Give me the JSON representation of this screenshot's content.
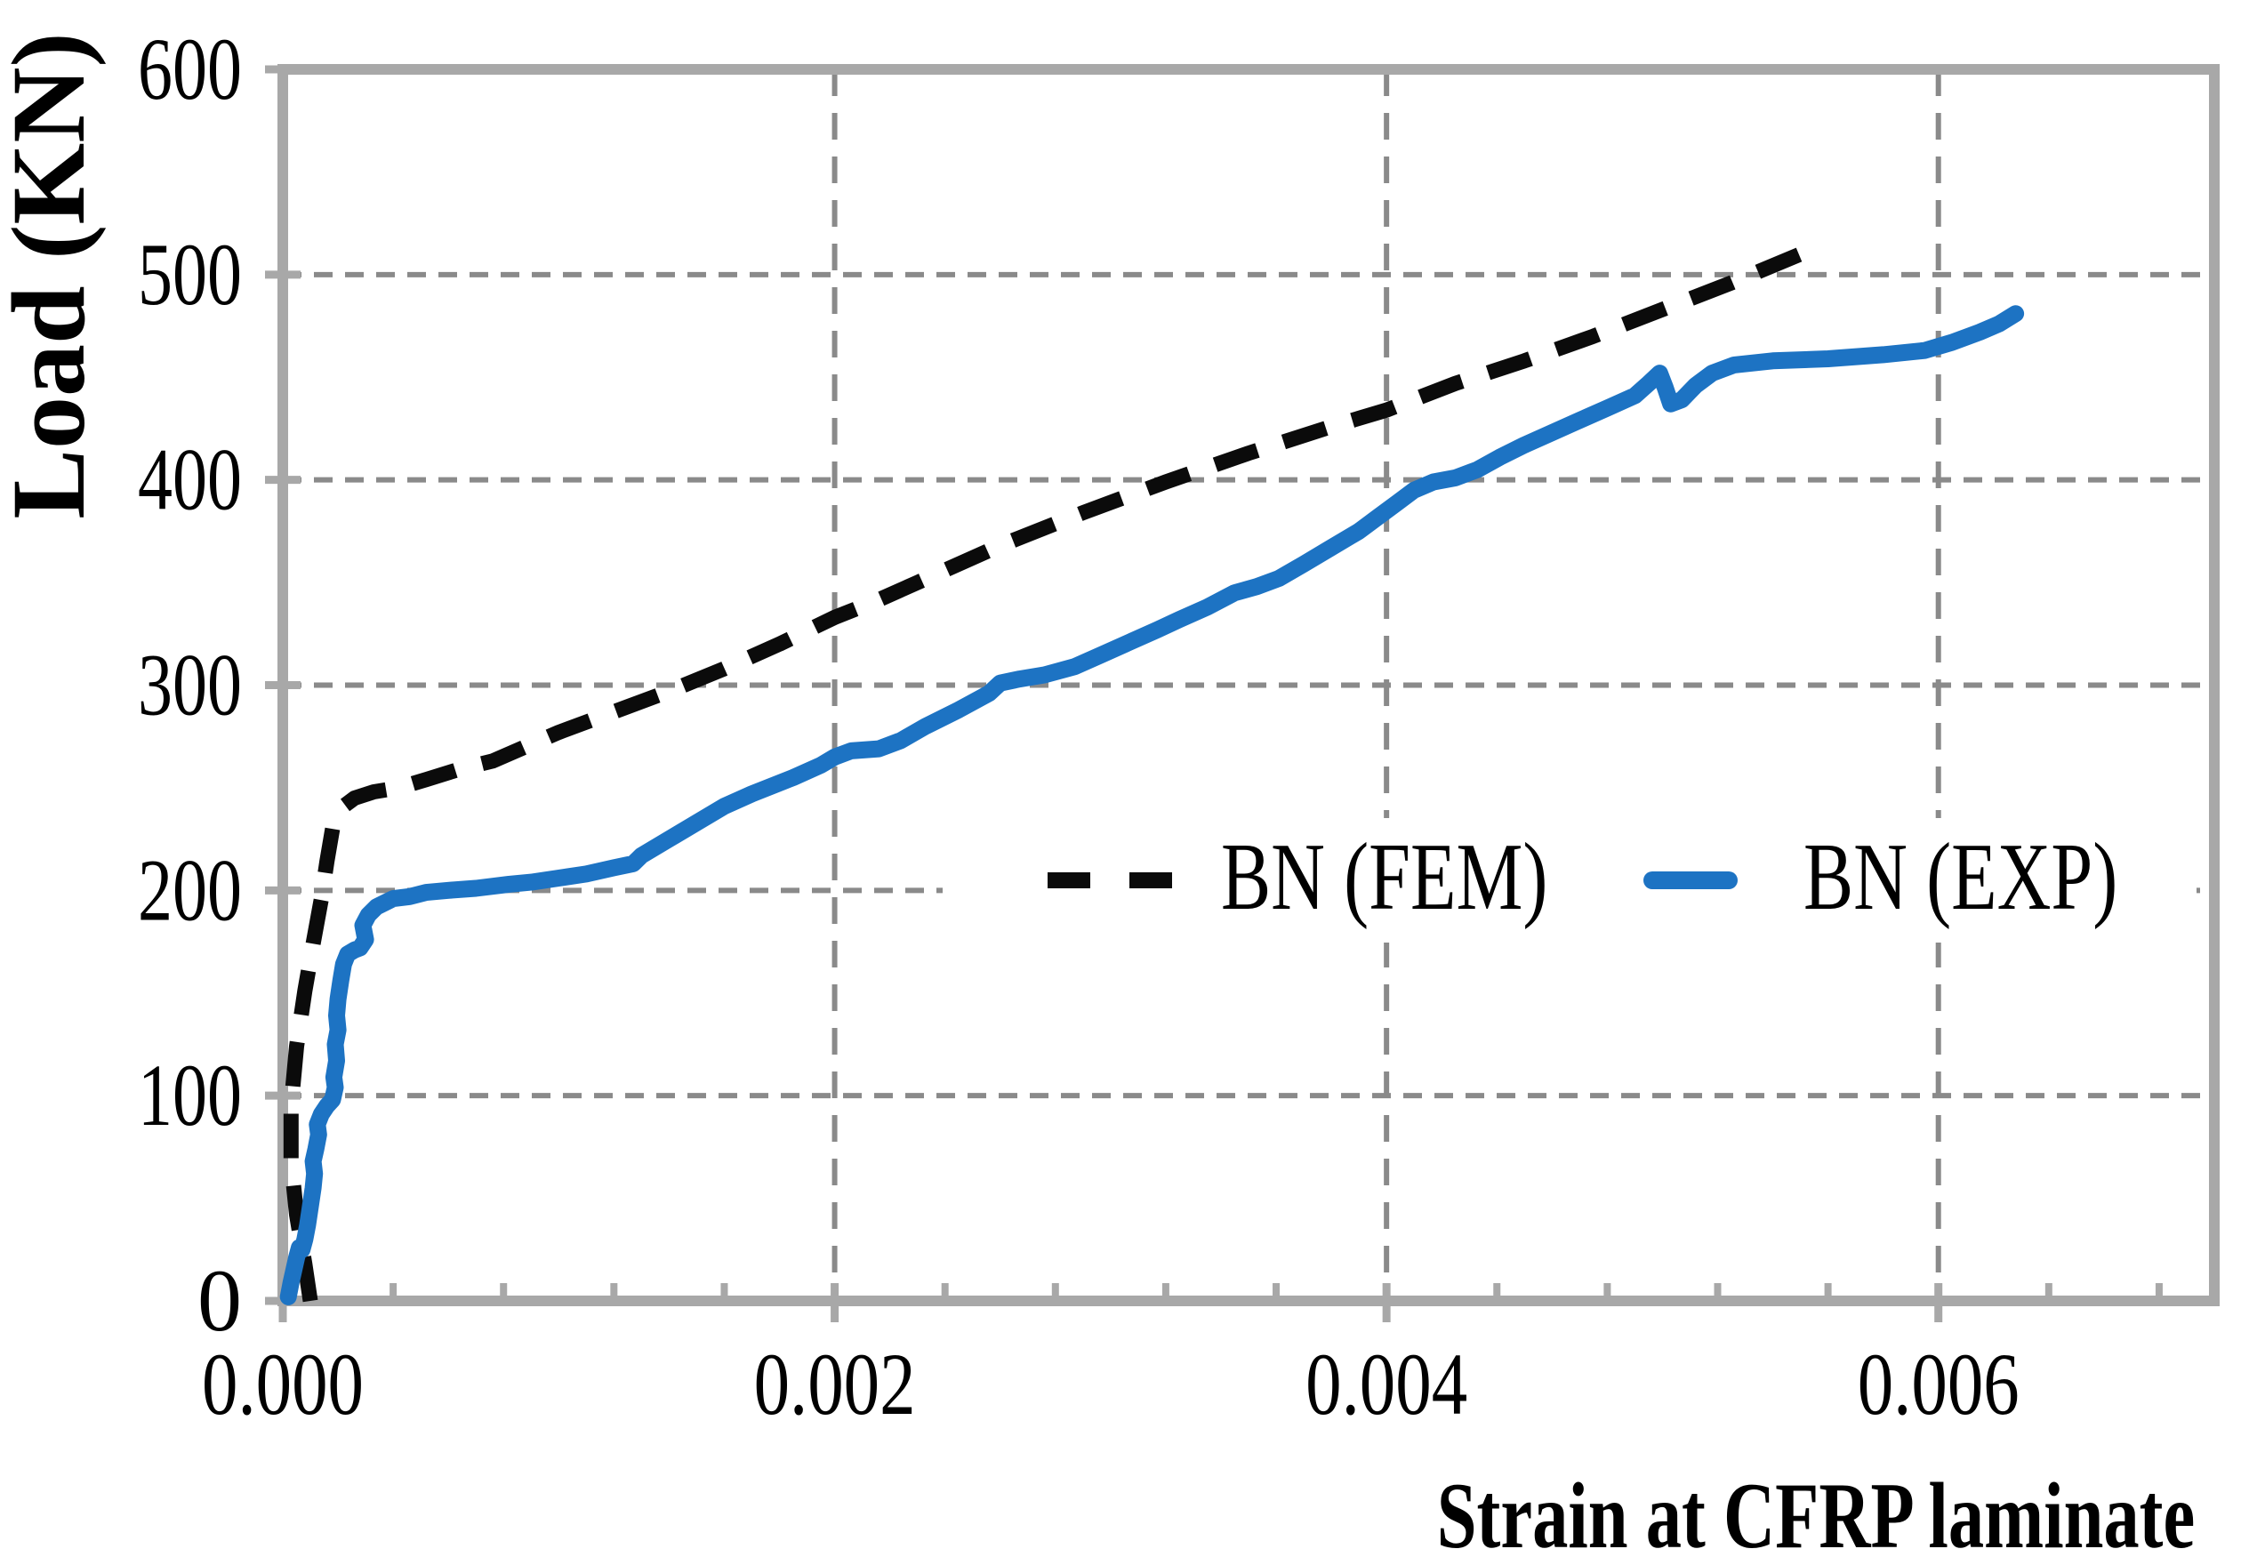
{
  "chart_data": {
    "type": "line",
    "title": "",
    "xlabel": "Strain at CFRP laminate",
    "ylabel": "Load (KN)",
    "xlim": [
      0,
      0.007
    ],
    "ylim": [
      0,
      600
    ],
    "grid": {
      "horizontal": [
        100,
        200,
        300,
        400,
        500
      ],
      "vertical": [
        0.002,
        0.004,
        0.006
      ],
      "style": "dashed-gray"
    },
    "x_major_ticks": [
      0,
      0.002,
      0.004,
      0.006
    ],
    "x_tick_labels": [
      "0.000",
      "0.002",
      "0.004",
      "0.006"
    ],
    "x_minor_step": 0.0004,
    "y_major_ticks": [
      0,
      100,
      200,
      300,
      400,
      500,
      600
    ],
    "y_tick_labels": [
      "0",
      "100",
      "200",
      "300",
      "400",
      "500",
      "600"
    ],
    "legend": {
      "position": "inside-middle-right",
      "items": [
        {
          "label": "BN (FEM)",
          "style": "dashed",
          "color": "#0b0b0b"
        },
        {
          "label": "BN (EXP)",
          "style": "solid",
          "color": "#1d73c3"
        }
      ]
    },
    "series": [
      {
        "name": "BN (FEM)",
        "style": "dashed",
        "color": "#0b0b0b",
        "points": [
          [
            0.0001,
            0
          ],
          [
            8e-05,
            18
          ],
          [
            5e-05,
            42
          ],
          [
            3e-05,
            68
          ],
          [
            3e-05,
            95
          ],
          [
            5e-05,
            124
          ],
          [
            8e-05,
            151
          ],
          [
            0.00011,
            174
          ],
          [
            0.00014,
            196
          ],
          [
            0.00016,
            214
          ],
          [
            0.00018,
            230
          ],
          [
            0.00021,
            240
          ],
          [
            0.00026,
            245
          ],
          [
            0.00033,
            248
          ],
          [
            0.00042,
            250
          ],
          [
            0.00052,
            254
          ],
          [
            0.00064,
            259
          ],
          [
            0.00076,
            263
          ],
          [
            0.001,
            277
          ],
          [
            0.00124,
            289
          ],
          [
            0.0014,
            297
          ],
          [
            0.0016,
            308
          ],
          [
            0.0018,
            320
          ],
          [
            0.002,
            333
          ],
          [
            0.00215,
            341
          ],
          [
            0.0023,
            350
          ],
          [
            0.0026,
            368
          ],
          [
            0.0029,
            384
          ],
          [
            0.0032,
            399
          ],
          [
            0.0035,
            413
          ],
          [
            0.0038,
            426
          ],
          [
            0.004,
            434
          ],
          [
            0.00425,
            447
          ],
          [
            0.0045,
            458
          ],
          [
            0.00475,
            470
          ],
          [
            0.005,
            483
          ],
          [
            0.00525,
            496
          ],
          [
            0.0055,
            510
          ]
        ]
      },
      {
        "name": "BN (EXP)",
        "style": "solid",
        "color": "#1d73c3",
        "points": [
          [
            2e-05,
            2
          ],
          [
            3e-05,
            9
          ],
          [
            4e-05,
            15
          ],
          [
            5e-05,
            21
          ],
          [
            6e-05,
            26
          ],
          [
            7e-05,
            25
          ],
          [
            8e-05,
            30
          ],
          [
            9e-05,
            37
          ],
          [
            0.0001,
            46
          ],
          [
            0.00011,
            55
          ],
          [
            0.000115,
            62
          ],
          [
            0.00011,
            68
          ],
          [
            0.00012,
            74
          ],
          [
            0.00013,
            81
          ],
          [
            0.000125,
            86
          ],
          [
            0.00014,
            91
          ],
          [
            0.00016,
            95
          ],
          [
            0.00018,
            98
          ],
          [
            0.00019,
            104
          ],
          [
            0.000185,
            109
          ],
          [
            0.000195,
            117
          ],
          [
            0.00019,
            125
          ],
          [
            0.0002,
            132
          ],
          [
            0.000195,
            139
          ],
          [
            0.0002,
            147
          ],
          [
            0.00021,
            156
          ],
          [
            0.00022,
            164
          ],
          [
            0.000235,
            169
          ],
          [
            0.00026,
            171
          ],
          [
            0.00028,
            172
          ],
          [
            0.0003,
            176
          ],
          [
            0.00029,
            183
          ],
          [
            0.00031,
            188
          ],
          [
            0.00034,
            192
          ],
          [
            0.00037,
            194
          ],
          [
            0.0004,
            196
          ],
          [
            0.00046,
            197
          ],
          [
            0.00052,
            199
          ],
          [
            0.0006,
            200
          ],
          [
            0.0007,
            201
          ],
          [
            0.00082,
            203
          ],
          [
            0.0009,
            204
          ],
          [
            0.001,
            206
          ],
          [
            0.0011,
            208
          ],
          [
            0.0012,
            211
          ],
          [
            0.00127,
            213
          ],
          [
            0.0013,
            217
          ],
          [
            0.0014,
            225
          ],
          [
            0.0015,
            233
          ],
          [
            0.0016,
            241
          ],
          [
            0.0017,
            247
          ],
          [
            0.00185,
            255
          ],
          [
            0.00195,
            261
          ],
          [
            0.002,
            265
          ],
          [
            0.00206,
            268
          ],
          [
            0.00216,
            269
          ],
          [
            0.00224,
            273
          ],
          [
            0.00233,
            280
          ],
          [
            0.00245,
            288
          ],
          [
            0.00256,
            296
          ],
          [
            0.0026,
            301
          ],
          [
            0.00267,
            303
          ],
          [
            0.00276,
            305
          ],
          [
            0.00287,
            309
          ],
          [
            0.00297,
            315
          ],
          [
            0.00307,
            321
          ],
          [
            0.00317,
            327
          ],
          [
            0.00325,
            332
          ],
          [
            0.00335,
            338
          ],
          [
            0.00345,
            345
          ],
          [
            0.00353,
            348
          ],
          [
            0.00361,
            352
          ],
          [
            0.0037,
            359
          ],
          [
            0.0038,
            367
          ],
          [
            0.0039,
            375
          ],
          [
            0.00397,
            382
          ],
          [
            0.00404,
            389
          ],
          [
            0.0041,
            395
          ],
          [
            0.00417,
            399
          ],
          [
            0.00425,
            401
          ],
          [
            0.00433,
            405
          ],
          [
            0.00441,
            411
          ],
          [
            0.0045,
            417
          ],
          [
            0.0046,
            423
          ],
          [
            0.0047,
            429
          ],
          [
            0.0048,
            435
          ],
          [
            0.0049,
            441
          ],
          [
            0.00495,
            447
          ],
          [
            0.00499,
            452
          ],
          [
            0.00501,
            445
          ],
          [
            0.00503,
            437
          ],
          [
            0.00507,
            439
          ],
          [
            0.00512,
            446
          ],
          [
            0.00518,
            452
          ],
          [
            0.00526,
            456
          ],
          [
            0.0054,
            458
          ],
          [
            0.0056,
            459
          ],
          [
            0.0058,
            461
          ],
          [
            0.00595,
            463
          ],
          [
            0.00605,
            467
          ],
          [
            0.00615,
            472
          ],
          [
            0.00622,
            476
          ],
          [
            0.00628,
            481
          ]
        ]
      }
    ],
    "colors": {
      "background": "#ffffff",
      "axis": "#a8a8a8",
      "grid": "#8a8a8a",
      "fem": "#0b0b0b",
      "exp": "#1d73c3",
      "text": "#000000"
    }
  }
}
